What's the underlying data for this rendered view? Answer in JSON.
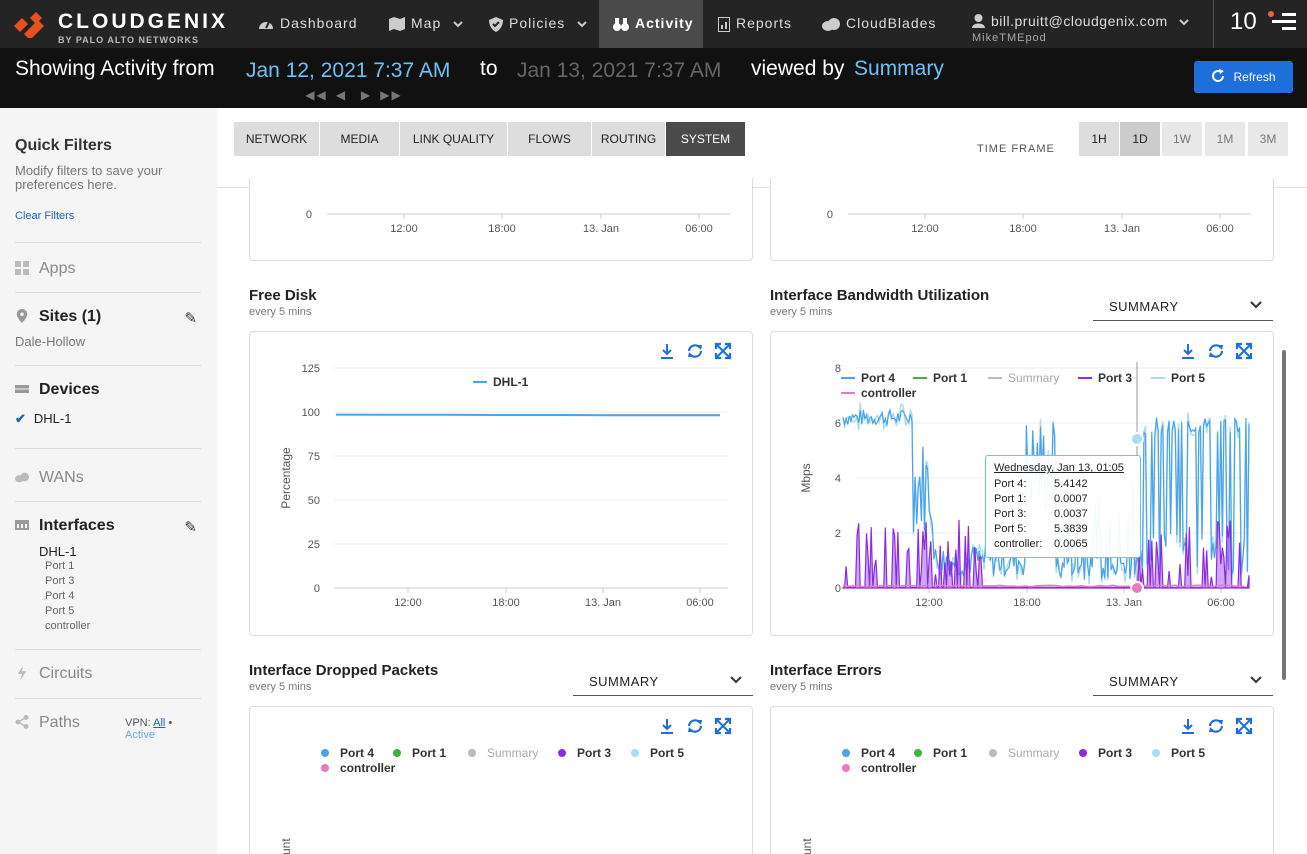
{
  "brand": {
    "name": "CLOUDGENIX",
    "sub": "BY PALO ALTO NETWORKS"
  },
  "nav": {
    "dashboard": "Dashboard",
    "map": "Map",
    "policies": "Policies",
    "activity": "Activity",
    "reports": "Reports",
    "cloudblades": "CloudBlades",
    "user_email": "bill.pruitt@cloudgenix.com",
    "user_tenant": "MikeTMEpod",
    "notif_count": "10"
  },
  "activity_bar": {
    "prefix": "Showing Activity from",
    "from": "Jan 12, 2021 7:37 AM",
    "to_label": "to",
    "to": "Jan 13, 2021 7:37 AM",
    "viewed_by": "viewed by",
    "view": "Summary",
    "refresh": "Refresh"
  },
  "sidebar": {
    "title": "Quick Filters",
    "subtitle": "Modify filters to save your preferences here.",
    "clear": "Clear Filters",
    "apps": "Apps",
    "sites": "Sites (1)",
    "site_value": "Dale-Hollow",
    "devices": "Devices",
    "device_value": "DHL-1",
    "wans": "WANs",
    "interfaces": "Interfaces",
    "iface_device": "DHL-1",
    "ports": [
      "Port 1",
      "Port 3",
      "Port 4",
      "Port 5",
      "controller"
    ],
    "circuits": "Circuits",
    "paths": "Paths",
    "vpn_label": "VPN:",
    "vpn_all": "All",
    "vpn_active": "Active"
  },
  "tabs": [
    "NETWORK",
    "MEDIA",
    "LINK QUALITY",
    "FLOWS",
    "ROUTING",
    "SYSTEM"
  ],
  "timeframe": {
    "label": "TIME FRAME",
    "options": [
      "1H",
      "1D",
      "1W",
      "1M",
      "3M"
    ],
    "selected": "1D"
  },
  "charts": {
    "top_left": {
      "ytick": "0",
      "xticks": [
        "12:00",
        "18:00",
        "13. Jan",
        "06:00"
      ]
    },
    "top_right": {
      "ytick": "0",
      "xticks": [
        "12:00",
        "18:00",
        "13. Jan",
        "06:00"
      ]
    },
    "free_disk": {
      "title": "Free Disk",
      "sub": "every 5 mins",
      "ylabel": "Percentage",
      "legend": "DHL-1"
    },
    "bandwidth": {
      "title": "Interface Bandwidth Utilization",
      "sub": "every 5 mins",
      "ylabel": "Mbps",
      "select": "SUMMARY",
      "legend": [
        "Port 4",
        "Port 1",
        "Summary",
        "Port 3",
        "Port 5",
        "controller"
      ]
    },
    "dropped": {
      "title": "Interface Dropped Packets",
      "sub": "every 5 mins",
      "select": "SUMMARY",
      "ylabel": "unt",
      "legend": [
        "Port 4",
        "Port 1",
        "Summary",
        "Port 3",
        "Port 5",
        "controller"
      ]
    },
    "errors": {
      "title": "Interface Errors",
      "sub": "every 5 mins",
      "select": "SUMMARY",
      "ylabel": "unt",
      "legend": [
        "Port 4",
        "Port 1",
        "Summary",
        "Port 3",
        "Port 5",
        "controller"
      ]
    }
  },
  "tooltip": {
    "header": "Wednesday, Jan 13, 01:05",
    "rows": [
      {
        "label": "Port 4:",
        "value": "5.4142"
      },
      {
        "label": "Port 1:",
        "value": "0.0007"
      },
      {
        "label": "Port 3:",
        "value": "0.0037"
      },
      {
        "label": "Port 5:",
        "value": "5.3839"
      },
      {
        "label": "controller:",
        "value": "0.0065"
      }
    ]
  },
  "chart_data": [
    {
      "type": "line",
      "title": "Free Disk",
      "ylabel": "Percentage",
      "ylim": [
        0,
        125
      ],
      "yticks": [
        0,
        25,
        50,
        75,
        100,
        125
      ],
      "xticks": [
        "12:00",
        "18:00",
        "13. Jan",
        "06:00"
      ],
      "series": [
        {
          "name": "DHL-1",
          "color": "#4aa3e8",
          "values": [
            98.5,
            98.4,
            98.4,
            98.3,
            98.3,
            98.2,
            98.2,
            98.2
          ]
        }
      ]
    },
    {
      "type": "line",
      "title": "Interface Bandwidth Utilization",
      "ylabel": "Mbps",
      "ylim": [
        0,
        8
      ],
      "yticks": [
        0,
        2,
        4,
        6,
        8
      ],
      "xticks": [
        "12:00",
        "18:00",
        "13. Jan",
        "06:00"
      ],
      "series": [
        {
          "name": "Port 4",
          "color": "#4aa3e8"
        },
        {
          "name": "Port 1",
          "color": "#3bb53b"
        },
        {
          "name": "Summary",
          "color": "#bbbbbb"
        },
        {
          "name": "Port 3",
          "color": "#8a2be2"
        },
        {
          "name": "Port 5",
          "color": "#aadcf7"
        },
        {
          "name": "controller",
          "color": "#e77cc3"
        }
      ]
    }
  ],
  "colors": {
    "accent": "#1f6fdb",
    "link": "#6ec1f5",
    "port4": "#4aa3e8",
    "port1": "#3bb53b",
    "summary": "#bbbbbb",
    "port3": "#8a2be2",
    "port5": "#aadcf7",
    "controller": "#e77cc3"
  }
}
